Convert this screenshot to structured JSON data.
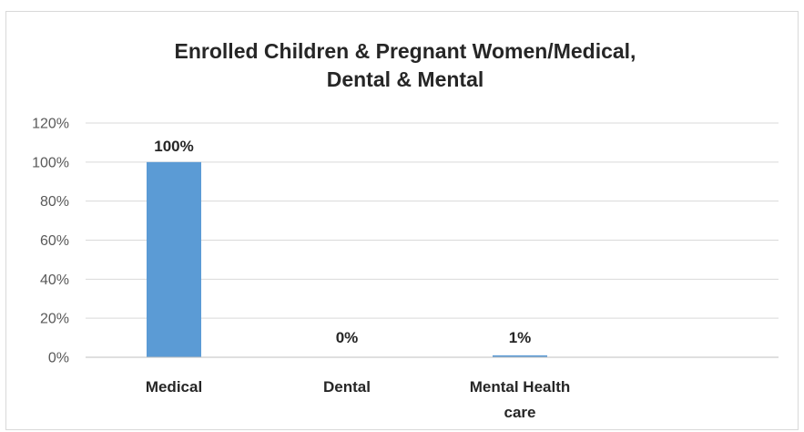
{
  "chart_data": {
    "type": "bar",
    "title_lines": [
      "Enrolled Children & Pregnant Women/Medical,",
      "Dental & Mental"
    ],
    "categories": [
      "Medical",
      "Dental",
      "Mental Health care"
    ],
    "category_lines": [
      [
        "Medical"
      ],
      [
        "Dental"
      ],
      [
        "Mental Health",
        "care"
      ]
    ],
    "values": [
      100,
      0,
      1
    ],
    "data_labels": [
      "100%",
      "0%",
      "1%"
    ],
    "ylim": [
      0,
      120
    ],
    "y_ticks": [
      0,
      20,
      40,
      60,
      80,
      100,
      120
    ],
    "y_tick_labels": [
      "0%",
      "20%",
      "40%",
      "60%",
      "80%",
      "100%",
      "120%"
    ],
    "xlabel": "",
    "ylabel": "",
    "grid": true,
    "legend": "none",
    "colors": {
      "bar": "#5b9bd5",
      "grid": "#d9d9d9",
      "axis": "#bfbfbf",
      "frame": "#d9d9d9"
    }
  }
}
